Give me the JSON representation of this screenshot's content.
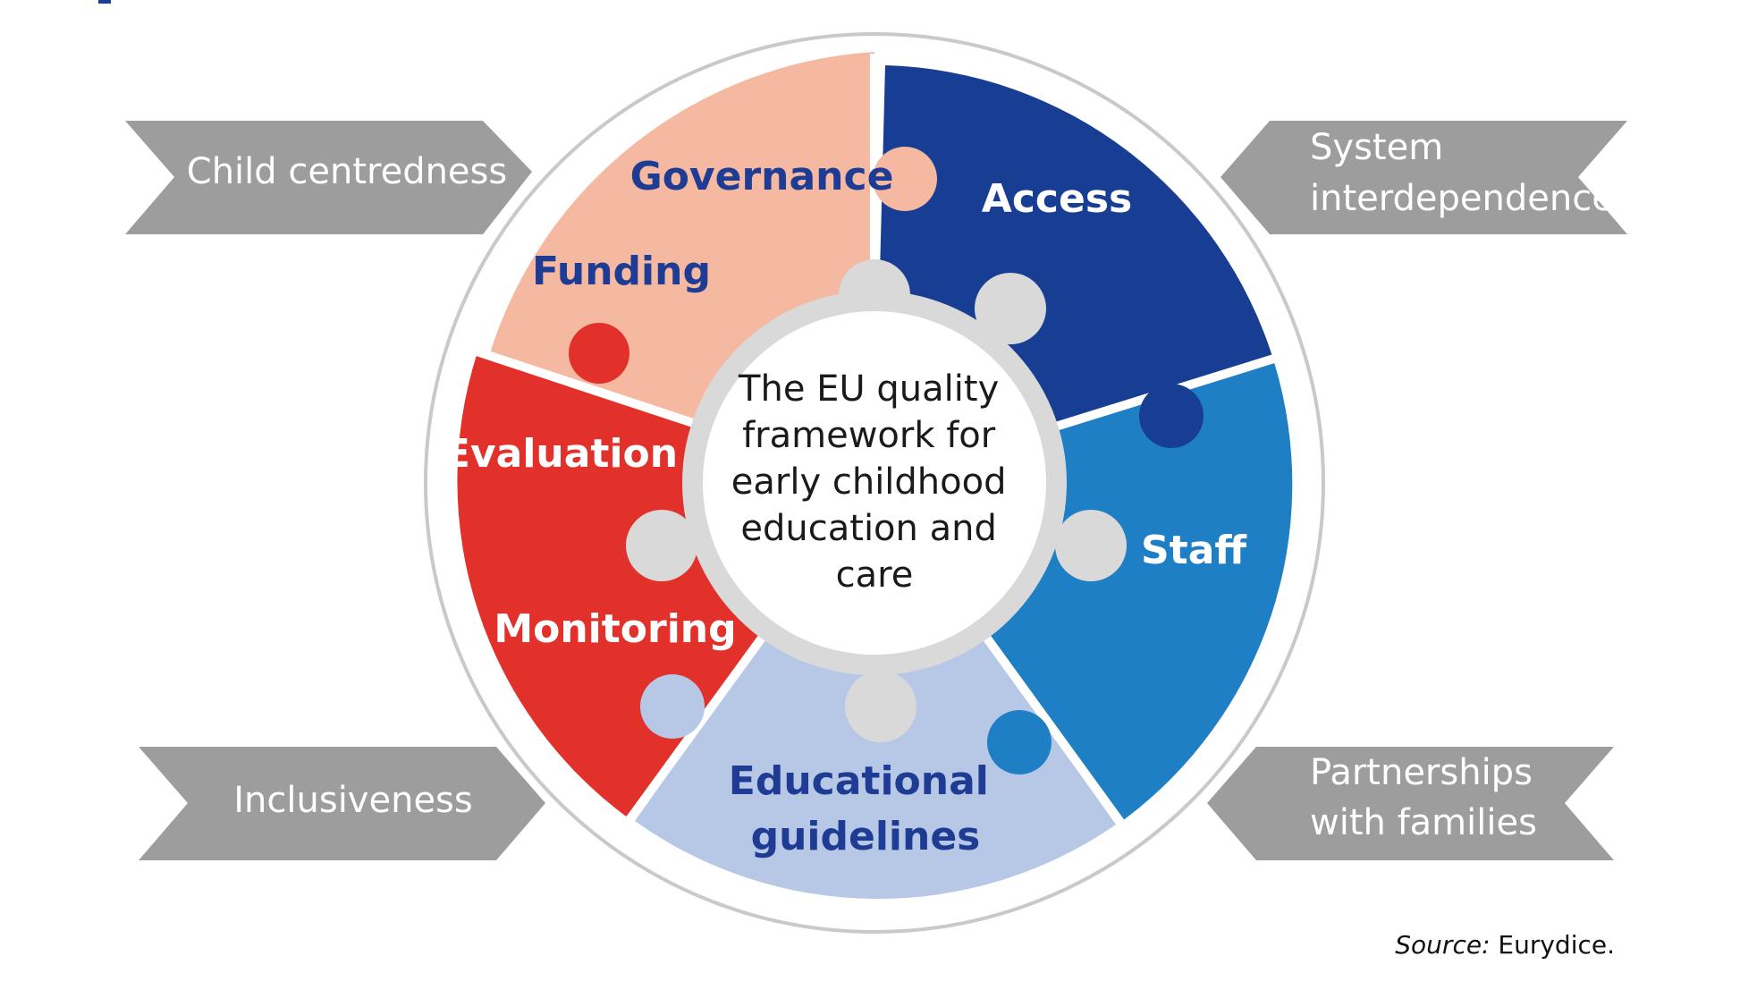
{
  "diagram": {
    "center_text": [
      "The EU quality",
      "framework for",
      "early childhood",
      "education and",
      "care"
    ],
    "segments": {
      "governance": "Governance",
      "funding": "Funding",
      "access": "Access",
      "staff": "Staff",
      "educational_guidelines": [
        "Educational",
        "guidelines"
      ],
      "evaluation": "Evaluation",
      "monitoring": "Monitoring"
    },
    "principles": {
      "top_left": [
        "Child centredness"
      ],
      "top_right": [
        "System",
        "interdependence"
      ],
      "bottom_left": [
        "Inclusiveness"
      ],
      "bottom_right": [
        "Partnerships",
        "with families"
      ]
    }
  },
  "source": {
    "label": "Source:",
    "value": "Eurydice."
  },
  "colors": {
    "peach": "#f5b9a2",
    "dark_blue": "#173e93",
    "mid_blue": "#1f7fc4",
    "light_blue": "#b6c8e6",
    "red": "#e2312a",
    "grey": "#9d9d9d",
    "hub_grey": "#d9d9d9",
    "label_navy": "#1f3c95"
  }
}
